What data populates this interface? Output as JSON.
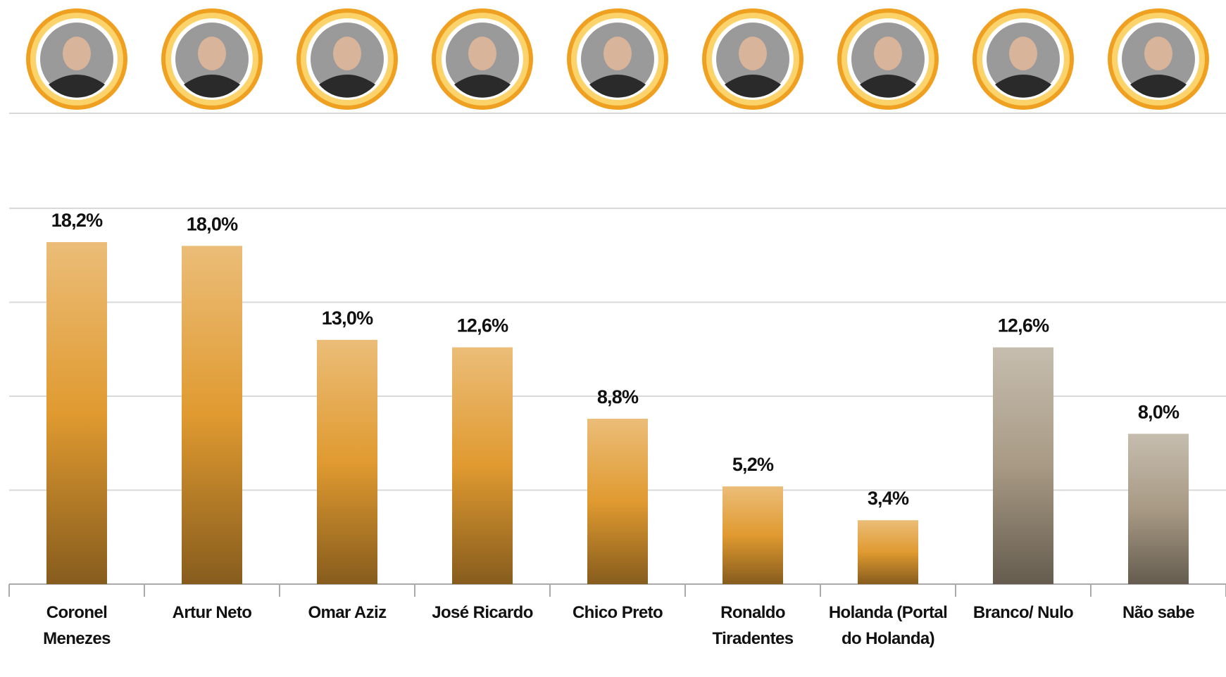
{
  "chart_data": {
    "type": "bar",
    "categories": [
      "Coronel Menezes",
      "Artur Neto",
      "Omar Aziz",
      "José Ricardo",
      "Chico Preto",
      "Ronaldo Tiradentes",
      "Holanda (Portal do Holanda)",
      "Branco/ Nulo",
      "Não sabe"
    ],
    "values": [
      18.2,
      18.0,
      13.0,
      12.6,
      8.8,
      5.2,
      3.4,
      12.6,
      8.0
    ],
    "value_labels": [
      "18,2%",
      "18,0%",
      "13,0%",
      "12,6%",
      "8,8%",
      "5,2%",
      "3,4%",
      "12,6%",
      "8,0%"
    ],
    "colors": [
      "#e09a30",
      "#e09a30",
      "#e09a30",
      "#e09a30",
      "#e09a30",
      "#e09a30",
      "#e09a30",
      "#a89a84",
      "#a89a84"
    ],
    "ylim": [
      0,
      20
    ],
    "yticks": [
      0,
      5,
      10,
      15,
      20
    ],
    "grid": true
  }
}
